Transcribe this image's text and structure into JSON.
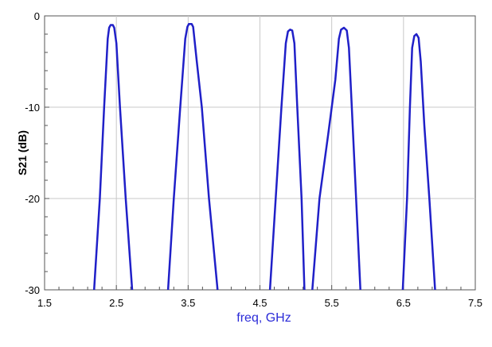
{
  "chart_data": {
    "type": "line",
    "title": "",
    "xlabel": "freq, GHz",
    "ylabel": "S21 (dB)",
    "xlim": [
      1.5,
      7.5
    ],
    "ylim": [
      -30,
      0
    ],
    "x_ticks": [
      "1.5",
      "2.5",
      "3.5",
      "4.5",
      "5.5",
      "6.5",
      "7.5"
    ],
    "y_ticks": [
      "0",
      "-10",
      "-20",
      "-30"
    ],
    "grid": true,
    "line_color": "#2020c8",
    "series": [
      {
        "segments": [
          [
            [
              2.19,
              -30
            ],
            [
              2.27,
              -20
            ],
            [
              2.33,
              -10
            ],
            [
              2.38,
              -2.5
            ],
            [
              2.4,
              -1.3
            ],
            [
              2.42,
              -1.0
            ],
            [
              2.45,
              -1.0
            ],
            [
              2.47,
              -1.3
            ],
            [
              2.5,
              -3.0
            ],
            [
              2.55,
              -10
            ],
            [
              2.63,
              -20
            ],
            [
              2.72,
              -30
            ]
          ],
          [
            [
              3.22,
              -30
            ],
            [
              3.3,
              -20
            ],
            [
              3.39,
              -10
            ],
            [
              3.46,
              -2.5
            ],
            [
              3.49,
              -1.2
            ],
            [
              3.51,
              -0.9
            ],
            [
              3.55,
              -0.9
            ],
            [
              3.57,
              -1.2
            ],
            [
              3.62,
              -5.0
            ],
            [
              3.69,
              -10
            ],
            [
              3.79,
              -20
            ],
            [
              3.91,
              -30
            ]
          ],
          [
            [
              4.64,
              -30
            ],
            [
              4.72,
              -20
            ],
            [
              4.8,
              -10
            ],
            [
              4.86,
              -3.0
            ],
            [
              4.89,
              -1.7
            ],
            [
              4.92,
              -1.5
            ],
            [
              4.95,
              -1.6
            ],
            [
              4.98,
              -3.0
            ],
            [
              5.02,
              -10
            ],
            [
              5.08,
              -20
            ],
            [
              5.12,
              -30
            ]
          ],
          [
            [
              5.23,
              -30
            ],
            [
              5.33,
              -20
            ],
            [
              5.45,
              -13
            ],
            [
              5.55,
              -7.0
            ],
            [
              5.6,
              -2.5
            ],
            [
              5.63,
              -1.5
            ],
            [
              5.67,
              -1.3
            ],
            [
              5.71,
              -1.6
            ],
            [
              5.74,
              -3.5
            ],
            [
              5.78,
              -10
            ],
            [
              5.84,
              -20
            ],
            [
              5.9,
              -30
            ]
          ],
          [
            [
              6.49,
              -30
            ],
            [
              6.55,
              -20
            ],
            [
              6.59,
              -10
            ],
            [
              6.62,
              -3.5
            ],
            [
              6.65,
              -2.2
            ],
            [
              6.68,
              -2.0
            ],
            [
              6.71,
              -2.4
            ],
            [
              6.74,
              -5.0
            ],
            [
              6.79,
              -12
            ],
            [
              6.86,
              -20
            ],
            [
              6.94,
              -30
            ]
          ]
        ]
      }
    ]
  }
}
